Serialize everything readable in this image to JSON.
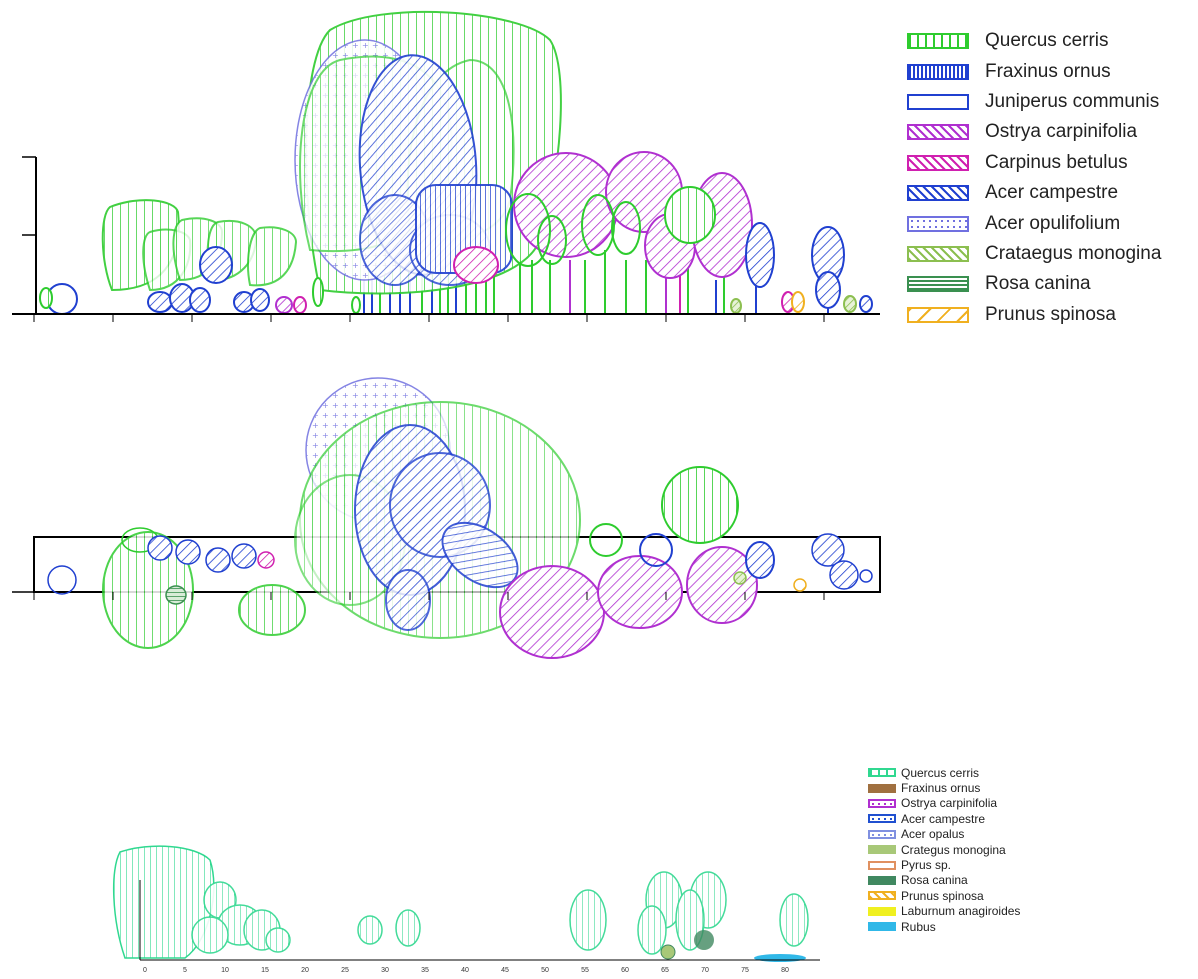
{
  "legend_top": [
    {
      "label": "Quercus cerris",
      "color": "#2ecc2e",
      "pattern": "vertical"
    },
    {
      "label": "Fraxinus ornus",
      "color": "#2040d0",
      "pattern": "vertical-dense"
    },
    {
      "label": "Juniperus communis",
      "color": "#2040d0",
      "pattern": "none"
    },
    {
      "label": "Ostrya carpinifolia",
      "color": "#b030d0",
      "pattern": "diagonal"
    },
    {
      "label": "Carpinus betulus",
      "color": "#d020b0",
      "pattern": "diagonal"
    },
    {
      "label": "Acer campestre",
      "color": "#2040d0",
      "pattern": "diagonal"
    },
    {
      "label": "Acer opulifolium",
      "color": "#7070e0",
      "pattern": "dots"
    },
    {
      "label": "Crataegus monogina",
      "color": "#8cbf50",
      "pattern": "diagonal"
    },
    {
      "label": "Rosa canina",
      "color": "#3a9050",
      "pattern": "horizontal"
    },
    {
      "label": "Prunus spinosa",
      "color": "#f0b020",
      "pattern": "diagonal-sparse"
    }
  ],
  "legend_bottom": [
    {
      "label": "Quercus cerris",
      "color": "#30d890",
      "pattern": "vertical"
    },
    {
      "label": "Fraxinus ornus",
      "color": "#a07040",
      "pattern": "solid"
    },
    {
      "label": "Ostrya carpinifolia",
      "color": "#b030d0",
      "pattern": "dots"
    },
    {
      "label": "Acer campestre",
      "color": "#2050d0",
      "pattern": "dots"
    },
    {
      "label": "Acer opalus",
      "color": "#8090e0",
      "pattern": "dots"
    },
    {
      "label": "Crategus monogina",
      "color": "#a8c878",
      "pattern": "solid"
    },
    {
      "label": "Pyrus sp.",
      "color": "#e09060",
      "pattern": "none"
    },
    {
      "label": "Rosa canina",
      "color": "#408860",
      "pattern": "solid"
    },
    {
      "label": "Prunus spinosa",
      "color": "#f0b020",
      "pattern": "diagonal"
    },
    {
      "label": "Laburnum anagiroides",
      "color": "#f0f020",
      "pattern": "solid"
    },
    {
      "label": "Rubus",
      "color": "#30b8e8",
      "pattern": "solid"
    }
  ],
  "bottom_axis_ticks": [
    "0",
    "5",
    "10",
    "15",
    "20",
    "25",
    "30",
    "35",
    "40",
    "45",
    "50",
    "55",
    "60",
    "65",
    "70",
    "75",
    "80"
  ]
}
